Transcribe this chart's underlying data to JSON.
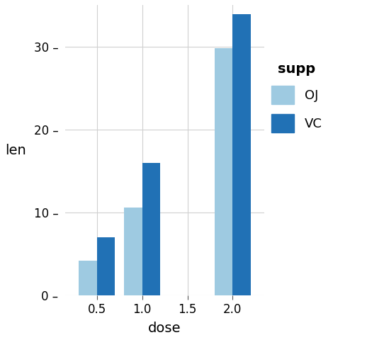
{
  "dose_labels": [
    "0.5",
    "1.0",
    "1.5",
    "2.0"
  ],
  "bar_positions": [
    0,
    1,
    3
  ],
  "bar_dose_labels": [
    "0.5",
    "1.0",
    "2.0"
  ],
  "OJ": [
    4.2,
    10.6,
    29.8
  ],
  "VC": [
    7.0,
    16.0,
    33.9
  ],
  "color_OJ": "#9ECAE1",
  "color_VC": "#2171B5",
  "xlabel": "dose",
  "ylabel": "len",
  "legend_title": "supp",
  "legend_labels": [
    "OJ",
    "VC"
  ],
  "ylim": [
    0,
    35
  ],
  "yticks": [
    0,
    10,
    20,
    30
  ],
  "background_color": "#FFFFFF",
  "grid_color": "#D0D0D0",
  "bar_width": 0.4,
  "axis_label_fontsize": 14,
  "tick_fontsize": 12,
  "legend_fontsize": 13,
  "legend_title_fontsize": 14
}
